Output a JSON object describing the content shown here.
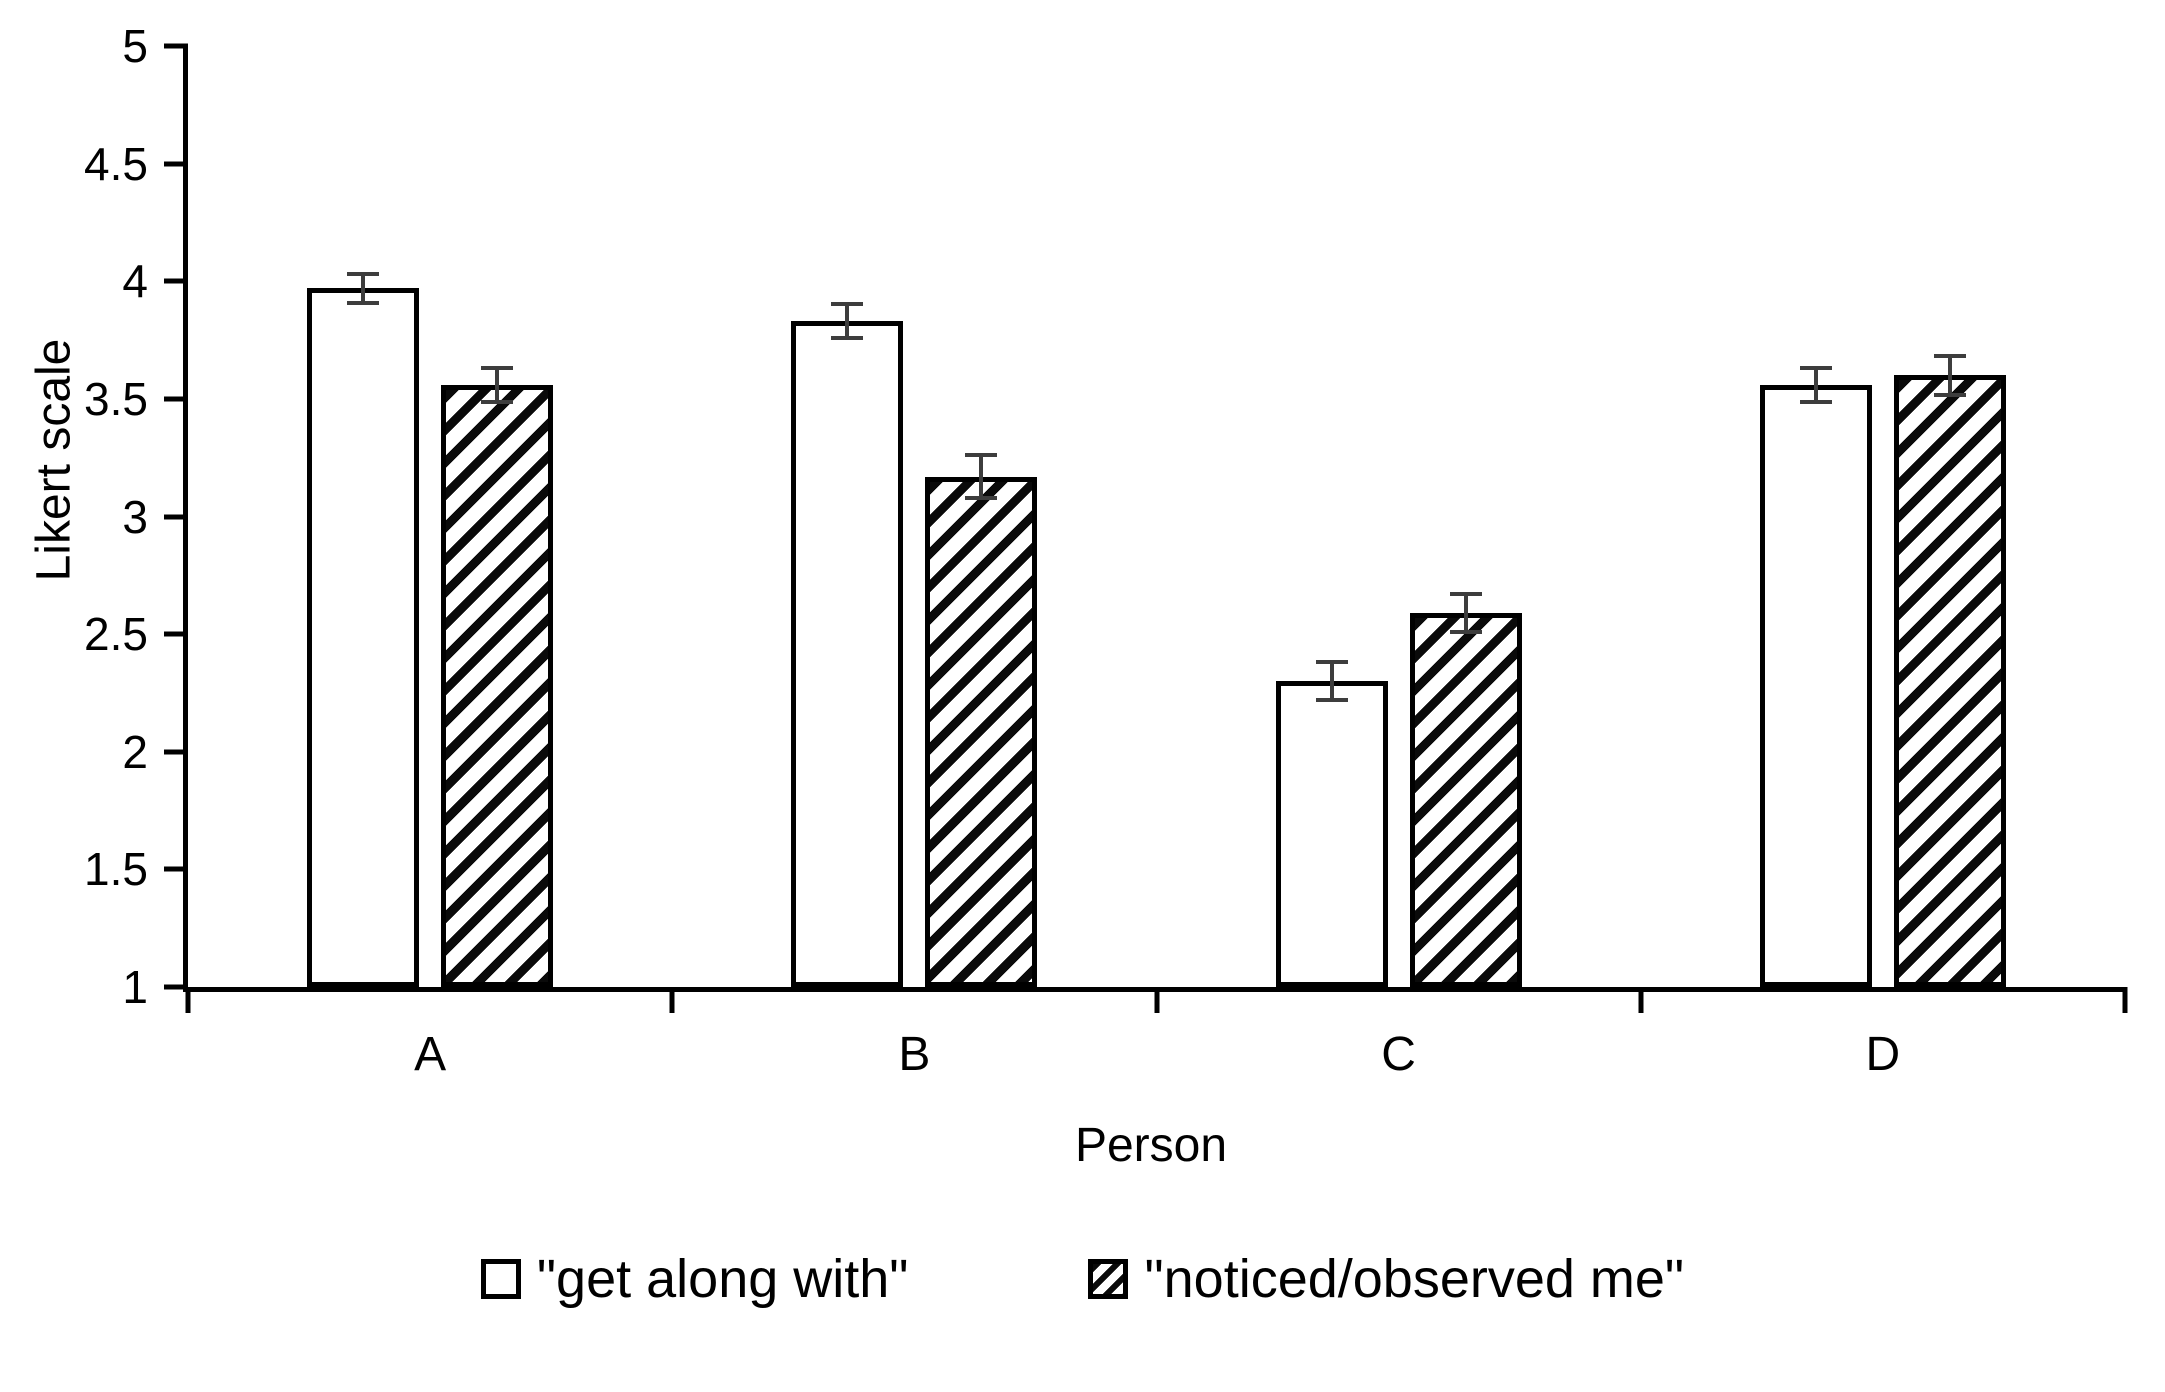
{
  "chart_data": {
    "type": "bar",
    "title": "",
    "xlabel": "Person",
    "ylabel": "Likert scale",
    "ylim": [
      1,
      5
    ],
    "yticks": [
      1,
      1.5,
      2,
      2.5,
      3,
      3.5,
      4,
      4.5,
      5
    ],
    "categories": [
      "A",
      "B",
      "C",
      "D"
    ],
    "series": [
      {
        "name": "\"get along with\"",
        "pattern": "solid-white",
        "values": [
          3.97,
          3.83,
          2.3,
          3.56
        ],
        "errors": [
          0.07,
          0.08,
          0.09,
          0.08
        ]
      },
      {
        "name": "\"noticed/observed me\"",
        "pattern": "diagonal-hatch",
        "values": [
          3.56,
          3.17,
          2.59,
          3.6
        ],
        "errors": [
          0.08,
          0.1,
          0.09,
          0.09
        ]
      }
    ],
    "grid": false,
    "error_bars": true,
    "legend_position": "bottom",
    "colors": {
      "background": "#ffffff",
      "bar_fill": "#ffffff",
      "bar_border": "#000000",
      "hatch": "#0a0a0a",
      "error_bar": "#3d3d3d",
      "axis": "#000000",
      "text": "#000000"
    }
  }
}
